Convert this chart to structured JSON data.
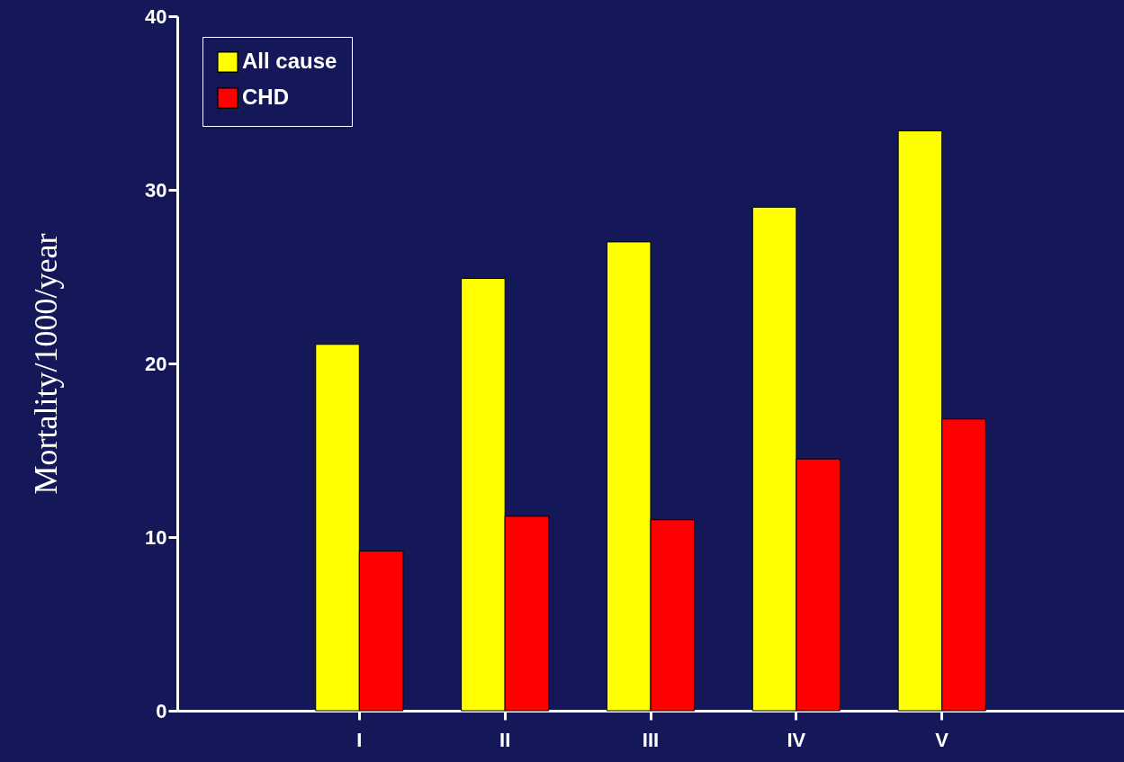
{
  "chart_data": {
    "type": "bar",
    "ylabel": "Mortality/1000/year",
    "categories": [
      "I",
      "II",
      "III",
      "IV",
      "V"
    ],
    "series": [
      {
        "name": "All cause",
        "color": "#ffff00",
        "values": [
          21.1,
          24.9,
          27.0,
          29.0,
          33.4
        ]
      },
      {
        "name": "CHD",
        "color": "#ff0000",
        "values": [
          9.2,
          11.2,
          11.0,
          14.5,
          16.8
        ]
      }
    ],
    "ylim": [
      0,
      40
    ],
    "yticks": [
      0,
      10,
      20,
      30,
      40
    ],
    "grid": false,
    "legend": "top left"
  }
}
